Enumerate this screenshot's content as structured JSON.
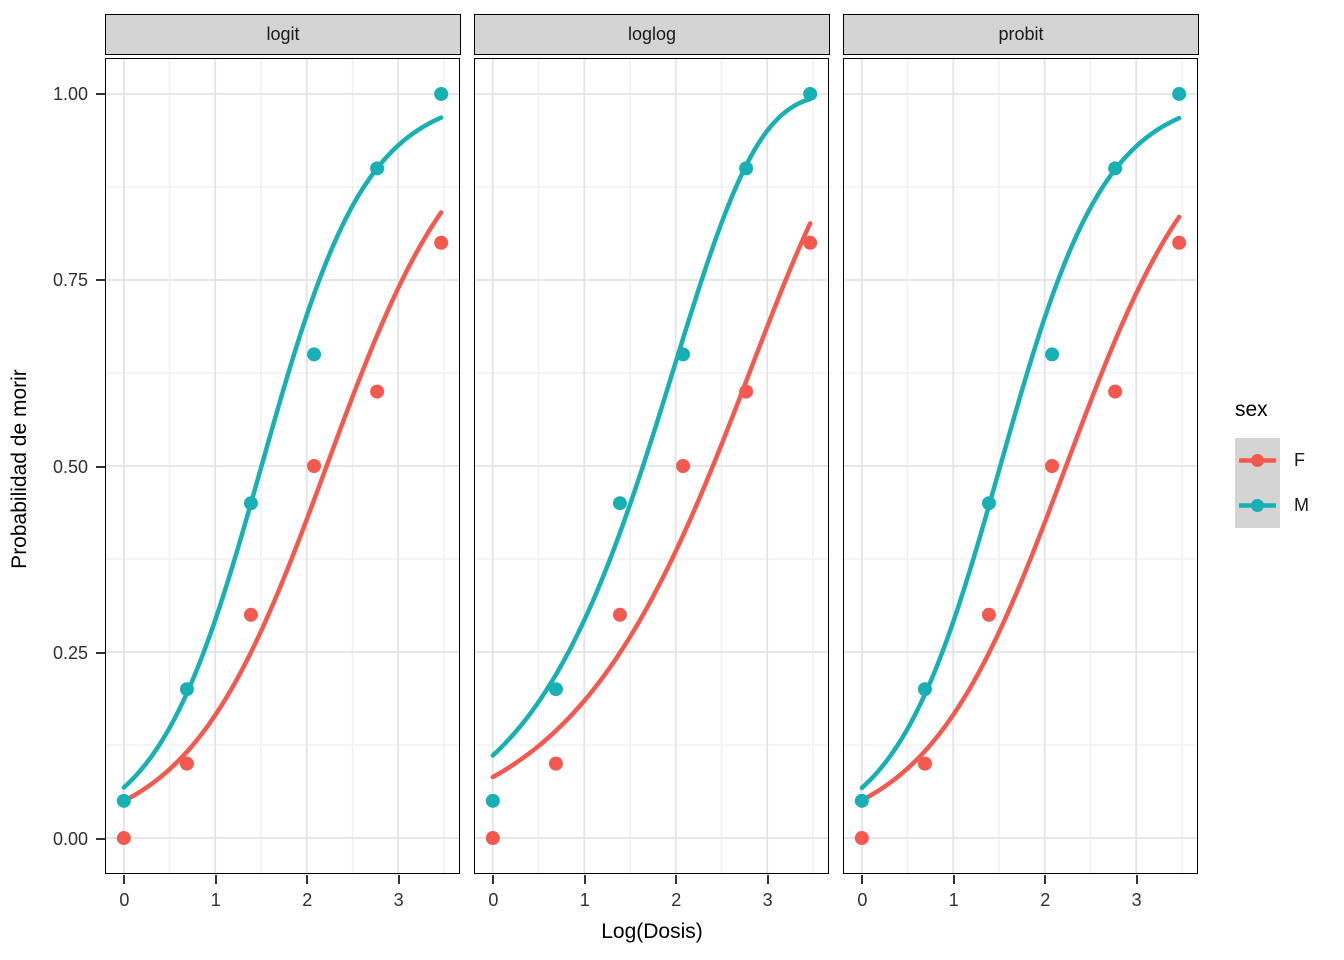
{
  "chart_data": {
    "type": "scatter",
    "description": "Faceted dose-response curves: observed mortality proportions with fitted binomial GLM curves for three link functions",
    "xlabel": "Log(Dosis)",
    "ylabel": "Probabilidad de morir",
    "x_range": [
      -0.195,
      3.665
    ],
    "y_range": [
      -0.047,
      1.047
    ],
    "grid": true,
    "x_major_ticks": [
      {
        "v": 0,
        "label": "0"
      },
      {
        "v": 1,
        "label": "1"
      },
      {
        "v": 2,
        "label": "2"
      },
      {
        "v": 3,
        "label": "3"
      }
    ],
    "x_minor_ticks": [
      0.5,
      1.5,
      2.5,
      3.5
    ],
    "y_major_ticks": [
      {
        "v": 0.0,
        "label": "0.00"
      },
      {
        "v": 0.25,
        "label": "0.25"
      },
      {
        "v": 0.5,
        "label": "0.50"
      },
      {
        "v": 0.75,
        "label": "0.75"
      },
      {
        "v": 1.0,
        "label": "1.00"
      }
    ],
    "y_minor_ticks": [
      0.125,
      0.375,
      0.625,
      0.875
    ],
    "points_x": [
      0,
      0.69,
      1.39,
      2.08,
      2.77,
      3.47
    ],
    "series": [
      {
        "name": "F",
        "color": "#F4594F",
        "points_y": [
          0.0,
          0.1,
          0.3,
          0.5,
          0.6,
          0.8
        ]
      },
      {
        "name": "M",
        "color": "#17B1B5",
        "points_y": [
          0.05,
          0.2,
          0.45,
          0.65,
          0.9,
          1.0
        ]
      }
    ],
    "curve_x_span": [
      0,
      3.47
    ],
    "panels": [
      {
        "label": "logit",
        "link": "logit",
        "curves": [
          {
            "series": "F",
            "a": -2.95,
            "b": 1.33
          },
          {
            "series": "M",
            "a": -2.62,
            "b": 1.74
          }
        ]
      },
      {
        "label": "loglog",
        "link": "loglog",
        "curves": [
          {
            "series": "F",
            "a": -2.46,
            "b": 0.87
          },
          {
            "series": "M",
            "a": -2.14,
            "b": 1.08
          }
        ]
      },
      {
        "label": "probit",
        "link": "probit",
        "curves": [
          {
            "series": "F",
            "a": -1.72,
            "b": 0.77
          },
          {
            "series": "M",
            "a": -1.544,
            "b": 1.02
          }
        ]
      }
    ],
    "legend": {
      "title": "sex",
      "entries": [
        "F",
        "M"
      ],
      "position": "right"
    },
    "style": {
      "background": "#ffffff",
      "grid_major": "#e3e3e3",
      "grid_minor": "#f0f0f0",
      "strip_bg": "#d4d4d4",
      "panel_border": "#000000",
      "tick_color": "#333333",
      "axis_text_color": "#303030",
      "title_color": "#000000",
      "legend_key_bg": "#d4d4d4"
    }
  }
}
